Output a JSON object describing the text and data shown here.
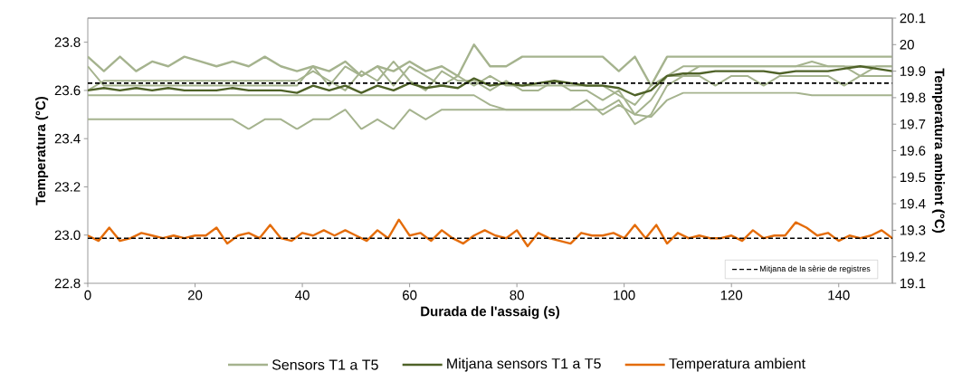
{
  "chart_data": {
    "type": "line",
    "xlabel": "Durada de l'assaig (s)",
    "ylabel": "Temperatura (°C)",
    "y2label": "Temperatura ambient (°C)",
    "x": [
      0,
      3,
      6,
      9,
      12,
      15,
      18,
      21,
      24,
      27,
      30,
      33,
      36,
      39,
      42,
      45,
      48,
      51,
      54,
      57,
      60,
      63,
      66,
      69,
      72,
      75,
      78,
      81,
      84,
      87,
      90,
      93,
      96,
      99,
      102,
      105,
      108,
      111,
      114,
      117,
      120,
      123,
      126,
      129,
      132,
      135,
      138,
      141,
      144,
      147,
      150
    ],
    "xlim": [
      0,
      150
    ],
    "xticks": [
      0,
      20,
      40,
      60,
      80,
      100,
      120,
      140
    ],
    "ylim": [
      22.8,
      23.9
    ],
    "yticks": [
      22.8,
      {
        "value": 23,
        "label": "23.0"
      },
      23.2,
      23.4,
      23.6,
      23.8
    ],
    "y2lim": [
      19.1,
      20.1
    ],
    "y2ticks": [
      19.1,
      19.2,
      19.3,
      19.4,
      19.5,
      19.6,
      19.7,
      19.8,
      19.9,
      20,
      20.1
    ],
    "marker": "none",
    "legend": "bottom",
    "grid": false,
    "series": [
      {
        "name": "Sensors T1 a T5",
        "color": "#a5b38e",
        "values": [
          23.74,
          23.68,
          23.74,
          23.68,
          23.72,
          23.7,
          23.74,
          23.72,
          23.7,
          23.72,
          23.7,
          23.74,
          23.7,
          23.68,
          23.7,
          23.68,
          23.72,
          23.66,
          23.7,
          23.68,
          23.72,
          23.68,
          23.7,
          23.66,
          23.79,
          23.7,
          23.7,
          23.74,
          23.74,
          23.74,
          23.74,
          23.74,
          23.74,
          23.68,
          23.74,
          23.62,
          23.74,
          23.74,
          23.74,
          23.74,
          23.74,
          23.74,
          23.74,
          23.74,
          23.74,
          23.74,
          23.74,
          23.74,
          23.74,
          23.74,
          23.74
        ]
      },
      {
        "color": "#a5b38e",
        "values": [
          23.58,
          23.58,
          23.58,
          23.58,
          23.58,
          23.58,
          23.58,
          23.58,
          23.58,
          23.58,
          23.58,
          23.58,
          23.58,
          23.58,
          23.58,
          23.58,
          23.58,
          23.58,
          23.58,
          23.58,
          23.58,
          23.58,
          23.58,
          23.58,
          23.58,
          23.54,
          23.52,
          23.52,
          23.52,
          23.52,
          23.52,
          23.56,
          23.5,
          23.54,
          23.5,
          23.49,
          23.56,
          23.59,
          23.59,
          23.59,
          23.59,
          23.59,
          23.59,
          23.59,
          23.59,
          23.58,
          23.58,
          23.58,
          23.58,
          23.58,
          23.58
        ]
      },
      {
        "color": "#a5b38e",
        "values": [
          23.48,
          23.48,
          23.48,
          23.48,
          23.48,
          23.48,
          23.48,
          23.48,
          23.48,
          23.48,
          23.44,
          23.48,
          23.48,
          23.44,
          23.48,
          23.48,
          23.52,
          23.44,
          23.48,
          23.44,
          23.52,
          23.48,
          23.52,
          23.52,
          23.52,
          23.52,
          23.52,
          23.52,
          23.52,
          23.52,
          23.52,
          23.52,
          23.52,
          23.56,
          23.46,
          23.5,
          23.62,
          23.66,
          23.7,
          23.7,
          23.7,
          23.7,
          23.7,
          23.7,
          23.7,
          23.7,
          23.7,
          23.7,
          23.7,
          23.7,
          23.7
        ]
      },
      {
        "color": "#a5b38e",
        "values": [
          23.7,
          23.62,
          23.62,
          23.62,
          23.62,
          23.62,
          23.62,
          23.62,
          23.62,
          23.62,
          23.62,
          23.62,
          23.62,
          23.62,
          23.7,
          23.62,
          23.7,
          23.66,
          23.7,
          23.62,
          23.7,
          23.66,
          23.62,
          23.66,
          23.62,
          23.66,
          23.62,
          23.62,
          23.62,
          23.62,
          23.62,
          23.62,
          23.62,
          23.58,
          23.54,
          23.62,
          23.66,
          23.66,
          23.66,
          23.62,
          23.66,
          23.66,
          23.62,
          23.66,
          23.66,
          23.66,
          23.66,
          23.62,
          23.66,
          23.66,
          23.66
        ]
      },
      {
        "color": "#a5b38e",
        "values": [
          23.6,
          23.64,
          23.64,
          23.64,
          23.64,
          23.64,
          23.64,
          23.64,
          23.64,
          23.64,
          23.64,
          23.64,
          23.64,
          23.64,
          23.68,
          23.64,
          23.6,
          23.68,
          23.64,
          23.72,
          23.64,
          23.6,
          23.68,
          23.64,
          23.64,
          23.6,
          23.64,
          23.6,
          23.6,
          23.64,
          23.6,
          23.6,
          23.56,
          23.6,
          23.5,
          23.56,
          23.66,
          23.7,
          23.7,
          23.7,
          23.7,
          23.7,
          23.7,
          23.7,
          23.7,
          23.72,
          23.7,
          23.7,
          23.66,
          23.7,
          23.7
        ]
      },
      {
        "name": "Mitjana sensors T1 a T5",
        "color": "#4f6228",
        "values": [
          23.6,
          23.61,
          23.6,
          23.61,
          23.6,
          23.61,
          23.6,
          23.6,
          23.6,
          23.61,
          23.6,
          23.6,
          23.6,
          23.59,
          23.62,
          23.6,
          23.62,
          23.59,
          23.62,
          23.6,
          23.63,
          23.61,
          23.62,
          23.61,
          23.65,
          23.62,
          23.63,
          23.62,
          23.63,
          23.64,
          23.63,
          23.62,
          23.62,
          23.61,
          23.58,
          23.6,
          23.66,
          23.67,
          23.67,
          23.68,
          23.68,
          23.68,
          23.68,
          23.67,
          23.68,
          23.68,
          23.68,
          23.69,
          23.7,
          23.69,
          23.68
        ]
      },
      {
        "name": "Temperatura ambient",
        "color": "#e46c0a",
        "axis": "y2",
        "x": [
          0,
          2,
          4,
          6,
          8,
          10,
          12,
          14,
          16,
          18,
          20,
          22,
          24,
          26,
          28,
          30,
          32,
          34,
          36,
          38,
          40,
          42,
          44,
          46,
          48,
          50,
          52,
          54,
          56,
          58,
          60,
          62,
          64,
          66,
          68,
          70,
          72,
          74,
          76,
          78,
          80,
          82,
          84,
          86,
          88,
          90,
          92,
          94,
          96,
          98,
          100,
          102,
          104,
          106,
          108,
          110,
          112,
          114,
          116,
          118,
          120,
          122,
          124,
          126,
          128,
          130,
          132,
          134,
          136,
          138,
          140,
          142,
          144,
          146,
          148,
          150
        ],
        "values": [
          19.28,
          19.26,
          19.31,
          19.26,
          19.27,
          19.29,
          19.28,
          19.27,
          19.28,
          19.27,
          19.28,
          19.28,
          19.31,
          19.25,
          19.28,
          19.29,
          19.27,
          19.32,
          19.27,
          19.26,
          19.29,
          19.28,
          19.3,
          19.28,
          19.3,
          19.28,
          19.26,
          19.3,
          19.27,
          19.34,
          19.28,
          19.29,
          19.26,
          19.3,
          19.27,
          19.25,
          19.28,
          19.3,
          19.28,
          19.27,
          19.3,
          19.24,
          19.29,
          19.27,
          19.26,
          19.25,
          19.29,
          19.28,
          19.28,
          19.29,
          19.27,
          19.32,
          19.27,
          19.32,
          19.25,
          19.29,
          19.27,
          19.28,
          19.27,
          19.27,
          19.28,
          19.26,
          19.3,
          19.27,
          19.28,
          19.28,
          19.33,
          19.31,
          19.28,
          19.29,
          19.26,
          19.28,
          19.27,
          19.28,
          19.3,
          19.27
        ]
      }
    ],
    "ref_lines": [
      {
        "axis": "y",
        "value": 23.63,
        "color": "#000000",
        "line_style": "dashed",
        "label": "Mitjana de la sèrie de registres"
      },
      {
        "axis": "y2",
        "value": 19.27,
        "color": "#000000",
        "line_style": "dashed"
      }
    ]
  }
}
